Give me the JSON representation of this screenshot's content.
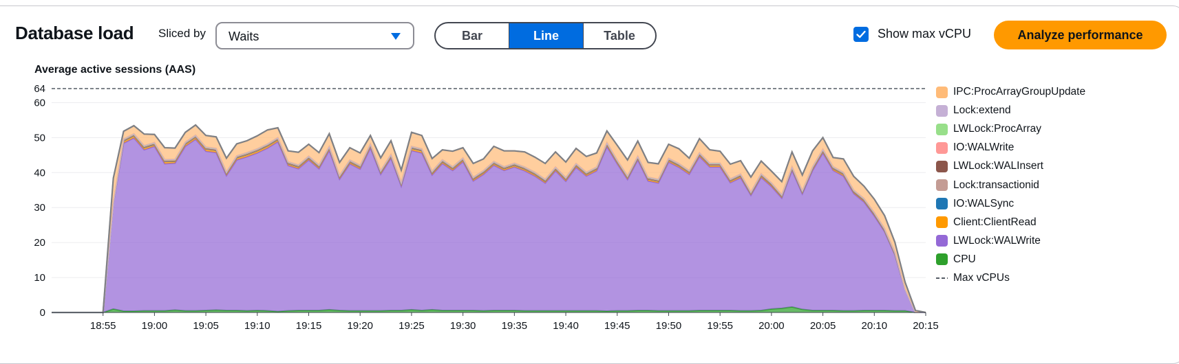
{
  "header": {
    "title": "Database load",
    "sliced_by_label": "Sliced by",
    "sliced_by_value": "Waits",
    "view_options": [
      "Bar",
      "Line",
      "Table"
    ],
    "selected_view": "Line",
    "show_max_vcpu_label": "Show max vCPU",
    "show_max_vcpu_checked": true,
    "analyze_label": "Analyze performance"
  },
  "colors": {
    "accent": "#006ce0",
    "button": "#ff9900"
  },
  "chart_data": {
    "type": "area",
    "title": "Average active sessions (AAS)",
    "ylim": [
      0,
      64
    ],
    "y_ticks": [
      0,
      10,
      20,
      30,
      40,
      50,
      60
    ],
    "max_vcpu": 64,
    "x_start": "18:50",
    "x_step_minutes": 1,
    "x_ticks": [
      "18:55",
      "19:00",
      "19:05",
      "19:10",
      "19:15",
      "19:20",
      "19:25",
      "19:30",
      "19:35",
      "19:40",
      "19:45",
      "19:50",
      "19:55",
      "20:00",
      "20:05",
      "20:10",
      "20:15"
    ],
    "grid": true,
    "legend_position": "right",
    "x": [
      "18:50",
      "18:51",
      "18:52",
      "18:53",
      "18:54",
      "18:55",
      "18:56",
      "18:57",
      "18:58",
      "18:59",
      "19:00",
      "19:01",
      "19:02",
      "19:03",
      "19:04",
      "19:05",
      "19:06",
      "19:07",
      "19:08",
      "19:09",
      "19:10",
      "19:11",
      "19:12",
      "19:13",
      "19:14",
      "19:15",
      "19:16",
      "19:17",
      "19:18",
      "19:19",
      "19:20",
      "19:21",
      "19:22",
      "19:23",
      "19:24",
      "19:25",
      "19:26",
      "19:27",
      "19:28",
      "19:29",
      "19:30",
      "19:31",
      "19:32",
      "19:33",
      "19:34",
      "19:35",
      "19:36",
      "19:37",
      "19:38",
      "19:39",
      "19:40",
      "19:41",
      "19:42",
      "19:43",
      "19:44",
      "19:45",
      "19:46",
      "19:47",
      "19:48",
      "19:49",
      "19:50",
      "19:51",
      "19:52",
      "19:53",
      "19:54",
      "19:55",
      "19:56",
      "19:57",
      "19:58",
      "19:59",
      "20:00",
      "20:01",
      "20:02",
      "20:03",
      "20:04",
      "20:05",
      "20:06",
      "20:07",
      "20:08",
      "20:09",
      "20:10",
      "20:11",
      "20:12",
      "20:13",
      "20:14",
      "20:15"
    ],
    "series": [
      {
        "name": "CPU",
        "color": "#2ea02c",
        "values": [
          0,
          0,
          0,
          0,
          0,
          0,
          1,
          0.4,
          0.4,
          0.5,
          0.5,
          0.5,
          0.7,
          0.5,
          0.5,
          0.6,
          0.7,
          0.6,
          0.6,
          0.5,
          0.6,
          0.5,
          0.3,
          0.5,
          0.6,
          0.6,
          0.6,
          0.8,
          0.6,
          0.5,
          0.5,
          0.5,
          0.5,
          0.6,
          0.6,
          0.8,
          0.6,
          0.8,
          0.6,
          0.6,
          0.6,
          0.6,
          0.5,
          0.6,
          0.6,
          0.6,
          0.5,
          0.5,
          0.5,
          0.5,
          0.5,
          0.5,
          0.5,
          0.5,
          0.4,
          0.5,
          0.5,
          0.6,
          0.6,
          0.5,
          0.5,
          0.5,
          0.5,
          0.6,
          0.6,
          0.6,
          0.6,
          0.5,
          0.5,
          0.6,
          1.0,
          1.2,
          1.6,
          0.9,
          0.6,
          0.6,
          0.6,
          0.5,
          0.5,
          0.6,
          0.6,
          0.6,
          0.5,
          0.5,
          0,
          0
        ]
      },
      {
        "name": "LWLock:WALWrite",
        "color": "#9469d6",
        "values": [
          0,
          0,
          0,
          0,
          0,
          0,
          30,
          48,
          49.5,
          46,
          47,
          42,
          42,
          47,
          49,
          45.5,
          45,
          38.5,
          43,
          44,
          45,
          46.5,
          48.5,
          41.5,
          40.5,
          43,
          40.5,
          45.5,
          37.5,
          42,
          40.5,
          46.5,
          39,
          43.5,
          35.5,
          45.5,
          45,
          38.5,
          42,
          40,
          42.5,
          37,
          39,
          41.5,
          40,
          41,
          40,
          38.5,
          36.5,
          40,
          37,
          41,
          38.5,
          40,
          47,
          42,
          37.5,
          43,
          37,
          36.5,
          42.5,
          41,
          39,
          44,
          41,
          41,
          36.5,
          38,
          33,
          38,
          35,
          31.5,
          39,
          33,
          40,
          45,
          40,
          38.5,
          33.5,
          31,
          27,
          22.5,
          16,
          6,
          0,
          0
        ]
      },
      {
        "name": "Client:ClientRead",
        "color": "#ff9900",
        "values": [
          0,
          0,
          0,
          0,
          0,
          0,
          0.4,
          0.6,
          0.6,
          0.6,
          0.5,
          0.6,
          0.5,
          0.6,
          0.6,
          0.6,
          0.6,
          0.5,
          0.6,
          0.6,
          0.6,
          0.6,
          0.6,
          0.5,
          0.5,
          0.5,
          0.5,
          0.6,
          0.5,
          0.5,
          0.5,
          0.6,
          0.5,
          0.5,
          0.5,
          0.6,
          0.6,
          0.5,
          0.5,
          0.5,
          0.5,
          0.5,
          0.5,
          0.5,
          0.5,
          0.5,
          0.5,
          0.5,
          0.5,
          0.5,
          0.5,
          0.5,
          0.5,
          0.5,
          0.6,
          0.5,
          0.5,
          0.5,
          0.5,
          0.5,
          0.5,
          0.5,
          0.5,
          0.5,
          0.5,
          0.5,
          0.5,
          0.5,
          0.4,
          0.5,
          0.5,
          0.4,
          0.5,
          0.4,
          0.5,
          0.5,
          0.5,
          0.5,
          0.4,
          0.4,
          0.4,
          0.3,
          0.2,
          0.1,
          0,
          0
        ]
      },
      {
        "name": "IO:WALSync",
        "color": "#1f77b4",
        "values": [
          0,
          0,
          0,
          0,
          0,
          0,
          0,
          0.1,
          0.1,
          0.1,
          0.1,
          0.1,
          0.1,
          0.1,
          0.1,
          0.1,
          0.1,
          0.1,
          0.1,
          0.1,
          0.1,
          0.1,
          0.1,
          0.1,
          0.1,
          0.1,
          0.1,
          0.1,
          0.1,
          0.1,
          0.1,
          0.1,
          0.1,
          0.1,
          0.1,
          0.1,
          0.1,
          0.1,
          0.1,
          0.1,
          0.1,
          0.1,
          0.1,
          0.1,
          0.1,
          0.1,
          0.1,
          0.1,
          0.1,
          0.1,
          0.1,
          0.1,
          0.1,
          0.1,
          0.1,
          0.1,
          0.1,
          0.1,
          0.1,
          0.1,
          0.1,
          0.1,
          0.1,
          0.1,
          0.1,
          0.1,
          0.1,
          0.1,
          0.1,
          0.1,
          0.1,
          0.1,
          0.1,
          0.1,
          0.1,
          0.1,
          0.1,
          0.1,
          0.1,
          0.1,
          0.1,
          0.1,
          0.1,
          0,
          0,
          0
        ]
      },
      {
        "name": "Lock:transactionid",
        "color": "#c49c94",
        "values": [
          0,
          0,
          0,
          0,
          0,
          0,
          0,
          0.1,
          0.1,
          0.1,
          0.1,
          0.1,
          0.1,
          0.1,
          0.1,
          0.1,
          0.1,
          0.1,
          0.1,
          0.1,
          0.1,
          0.1,
          0.1,
          0.1,
          0.1,
          0.1,
          0.1,
          0.1,
          0.1,
          0.1,
          0.1,
          0.1,
          0.1,
          0.1,
          0.1,
          0.1,
          0.1,
          0.1,
          0.1,
          0.1,
          0.1,
          0.1,
          0.1,
          0.1,
          0.1,
          0.1,
          0.1,
          0.1,
          0.1,
          0.1,
          0.1,
          0.1,
          0.1,
          0.1,
          0.1,
          0.1,
          0.1,
          0.1,
          0.1,
          0.1,
          0.1,
          0.1,
          0.1,
          0.1,
          0.1,
          0.1,
          0.1,
          0.1,
          0.1,
          0.1,
          0.1,
          0.1,
          0.1,
          0.1,
          0.1,
          0.1,
          0.1,
          0.1,
          0.1,
          0.1,
          0.1,
          0.1,
          0.1,
          0,
          0,
          0
        ]
      },
      {
        "name": "LWLock:WALInsert",
        "color": "#8c564b",
        "values": [
          0,
          0,
          0,
          0,
          0,
          0,
          0,
          0.1,
          0.1,
          0.1,
          0.1,
          0.1,
          0.1,
          0.1,
          0.1,
          0.1,
          0.1,
          0.1,
          0.1,
          0.1,
          0.1,
          0.1,
          0.1,
          0.1,
          0.1,
          0.1,
          0.1,
          0.1,
          0.1,
          0.1,
          0.1,
          0.1,
          0.1,
          0.1,
          0.1,
          0.1,
          0.1,
          0.1,
          0.1,
          0.1,
          0.1,
          0.1,
          0.1,
          0.1,
          0.1,
          0.1,
          0.1,
          0.1,
          0.1,
          0.1,
          0.1,
          0.1,
          0.1,
          0.1,
          0.1,
          0.1,
          0.1,
          0.1,
          0.1,
          0.1,
          0.1,
          0.1,
          0.1,
          0.1,
          0.1,
          0.1,
          0.1,
          0.1,
          0.1,
          0.1,
          0.1,
          0.1,
          0.1,
          0.1,
          0.1,
          0.1,
          0.1,
          0.1,
          0.1,
          0.1,
          0.1,
          0.1,
          0.1,
          0,
          0,
          0
        ]
      },
      {
        "name": "IO:WALWrite",
        "color": "#ff9896",
        "values": [
          0,
          0,
          0,
          0,
          0,
          0,
          0,
          0.1,
          0.1,
          0.1,
          0.1,
          0.1,
          0.1,
          0.1,
          0.1,
          0.1,
          0.1,
          0.1,
          0.1,
          0.1,
          0.1,
          0.1,
          0.1,
          0.1,
          0.1,
          0.1,
          0.1,
          0.1,
          0.1,
          0.1,
          0.1,
          0.1,
          0.1,
          0.1,
          0.1,
          0.1,
          0.1,
          0.1,
          0.1,
          0.1,
          0.1,
          0.1,
          0.1,
          0.1,
          0.1,
          0.1,
          0.1,
          0.1,
          0.1,
          0.1,
          0.1,
          0.1,
          0.1,
          0.1,
          0.1,
          0.1,
          0.1,
          0.1,
          0.1,
          0.1,
          0.1,
          0.1,
          0.1,
          0.1,
          0.1,
          0.1,
          0.1,
          0.1,
          0.1,
          0.1,
          0.1,
          0.1,
          0.1,
          0.1,
          0.1,
          0.1,
          0.1,
          0.1,
          0.1,
          0.1,
          0.1,
          0.1,
          0.1,
          0,
          0,
          0
        ]
      },
      {
        "name": "LWLock:ProcArray",
        "color": "#98df8a",
        "values": [
          0,
          0,
          0,
          0,
          0,
          0,
          0,
          0.1,
          0.1,
          0.1,
          0.1,
          0.1,
          0.1,
          0.1,
          0.1,
          0.1,
          0.1,
          0.1,
          0.1,
          0.1,
          0.1,
          0.1,
          0.1,
          0.1,
          0.1,
          0.1,
          0.1,
          0.1,
          0.1,
          0.1,
          0.1,
          0.1,
          0.1,
          0.1,
          0.1,
          0.1,
          0.1,
          0.1,
          0.1,
          0.1,
          0.1,
          0.1,
          0.1,
          0.1,
          0.1,
          0.1,
          0.1,
          0.1,
          0.1,
          0.1,
          0.1,
          0.1,
          0.1,
          0.1,
          0.1,
          0.1,
          0.1,
          0.1,
          0.1,
          0.1,
          0.1,
          0.1,
          0.1,
          0.1,
          0.1,
          0.1,
          0.1,
          0.1,
          0.1,
          0.1,
          0.1,
          0.1,
          0.1,
          0.1,
          0.1,
          0.1,
          0.1,
          0.1,
          0.1,
          0.1,
          0.1,
          0.1,
          0.1,
          0,
          0,
          0
        ]
      },
      {
        "name": "Lock:extend",
        "color": "#c5b0d5",
        "values": [
          0,
          0,
          0,
          0,
          0,
          0,
          0,
          0.1,
          0.1,
          0.1,
          0.1,
          0.1,
          0.1,
          0.1,
          0.1,
          0.1,
          0.1,
          0.1,
          0.1,
          0.1,
          0.1,
          0.1,
          0.1,
          0.1,
          0.1,
          0.1,
          0.1,
          0.1,
          0.1,
          0.1,
          0.1,
          0.1,
          0.1,
          0.1,
          0.1,
          0.1,
          0.1,
          0.1,
          0.1,
          0.1,
          0.1,
          0.1,
          0.1,
          0.1,
          0.1,
          0.1,
          0.1,
          0.1,
          0.1,
          0.1,
          0.1,
          0.1,
          0.1,
          0.1,
          0.1,
          0.1,
          0.1,
          0.1,
          0.1,
          0.1,
          0.1,
          0.1,
          0.1,
          0.1,
          0.1,
          0.1,
          0.1,
          0.1,
          0.1,
          0.1,
          0.1,
          0.1,
          0.1,
          0.1,
          0.1,
          0.1,
          0.1,
          0.1,
          0.1,
          0.1,
          0.1,
          0.1,
          0.1,
          0,
          0,
          0
        ]
      },
      {
        "name": "IPC:ProcArrayGroupUpdate",
        "color": "#ffbb78",
        "values": [
          0,
          0,
          0,
          0,
          0,
          0,
          7,
          2.2,
          2.3,
          3.3,
          2.3,
          3.4,
          3.2,
          2.8,
          2.9,
          3.3,
          3.3,
          3.9,
          3.4,
          3.4,
          3.7,
          4.0,
          2.8,
          3.1,
          3.6,
          3.4,
          3.5,
          3.6,
          3.7,
          3.5,
          3.5,
          2.4,
          3.6,
          3.9,
          3.5,
          4.0,
          3.8,
          3.6,
          2.8,
          4.4,
          2.9,
          3.9,
          3.3,
          4.3,
          4.5,
          3.5,
          4.3,
          4.3,
          4.5,
          4.3,
          4.4,
          4.3,
          4.5,
          4.0,
          3.3,
          4.2,
          4.5,
          4.3,
          4.2,
          4.4,
          4.0,
          4.2,
          3.5,
          4.0,
          3.8,
          3.4,
          4.2,
          3.8,
          4.2,
          3.6,
          3.3,
          3.7,
          4.2,
          4.4,
          4.5,
          3.3,
          2.6,
          3.8,
          3.9,
          3.5,
          3.8,
          3.7,
          2.8,
          2.0,
          0.6,
          0
        ]
      }
    ],
    "legend": [
      {
        "label": "IPC:ProcArrayGroupUpdate",
        "color": "#ffbb78"
      },
      {
        "label": "Lock:extend",
        "color": "#c5b0d5"
      },
      {
        "label": "LWLock:ProcArray",
        "color": "#98df8a"
      },
      {
        "label": "IO:WALWrite",
        "color": "#ff9896"
      },
      {
        "label": "LWLock:WALInsert",
        "color": "#8c564b"
      },
      {
        "label": "Lock:transactionid",
        "color": "#c49c94"
      },
      {
        "label": "IO:WALSync",
        "color": "#1f77b4"
      },
      {
        "label": "Client:ClientRead",
        "color": "#ff9900"
      },
      {
        "label": "LWLock:WALWrite",
        "color": "#9469d6"
      },
      {
        "label": "CPU",
        "color": "#2ea02c"
      },
      {
        "label": "Max vCPUs",
        "color": "#545b64",
        "dashed": true
      }
    ]
  }
}
